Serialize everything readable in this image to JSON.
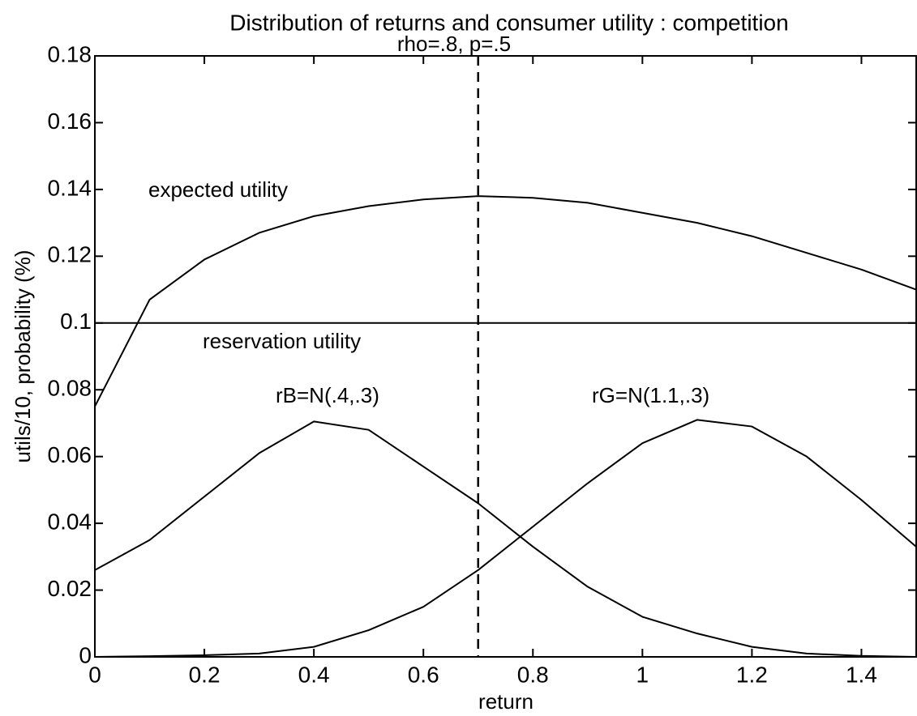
{
  "chart_data": {
    "type": "line",
    "title": "Distribution of returns and consumer utility : competition",
    "subtitle": "rho=.8, p=.5",
    "x_label": "return",
    "y_label": "utils/10, probability (%)",
    "x": [
      0,
      0.1,
      0.2,
      0.3,
      0.4,
      0.5,
      0.6,
      0.7,
      0.8,
      0.9,
      1.0,
      1.1,
      1.2,
      1.3,
      1.4,
      1.5
    ],
    "series": [
      {
        "name": "expected utility",
        "color": "#000000",
        "values": [
          0.075,
          0.107,
          0.119,
          0.127,
          0.132,
          0.135,
          0.137,
          0.138,
          0.1375,
          0.136,
          0.133,
          0.13,
          0.126,
          0.121,
          0.116,
          0.11
        ]
      },
      {
        "name": "reservation utility",
        "color": "#000000",
        "values": [
          0.1,
          0.1,
          0.1,
          0.1,
          0.1,
          0.1,
          0.1,
          0.1,
          0.1,
          0.1,
          0.1,
          0.1,
          0.1,
          0.1,
          0.1,
          0.1
        ]
      },
      {
        "name": "rB=N(.4,.3)",
        "color": "#000000",
        "values": [
          0.026,
          0.035,
          0.048,
          0.061,
          0.0705,
          0.068,
          0.057,
          0.046,
          0.033,
          0.021,
          0.012,
          0.007,
          0.003,
          0.001,
          0.0003,
          0
        ]
      },
      {
        "name": "rG=N(1.1,.3)",
        "color": "#000000",
        "values": [
          0,
          0.0002,
          0.0005,
          0.001,
          0.003,
          0.008,
          0.015,
          0.026,
          0.039,
          0.052,
          0.064,
          0.071,
          0.069,
          0.06,
          0.047,
          0.033
        ]
      }
    ],
    "vline": 0.7,
    "xlim": [
      0,
      1.5
    ],
    "xticks": [
      0,
      0.2,
      0.4,
      0.6,
      0.8,
      1,
      1.2,
      1.4
    ],
    "ylim": [
      0,
      0.18
    ],
    "yticks": [
      0,
      0.02,
      0.04,
      0.06,
      0.08,
      0.1,
      0.12,
      0.14,
      0.16,
      0.18
    ]
  }
}
